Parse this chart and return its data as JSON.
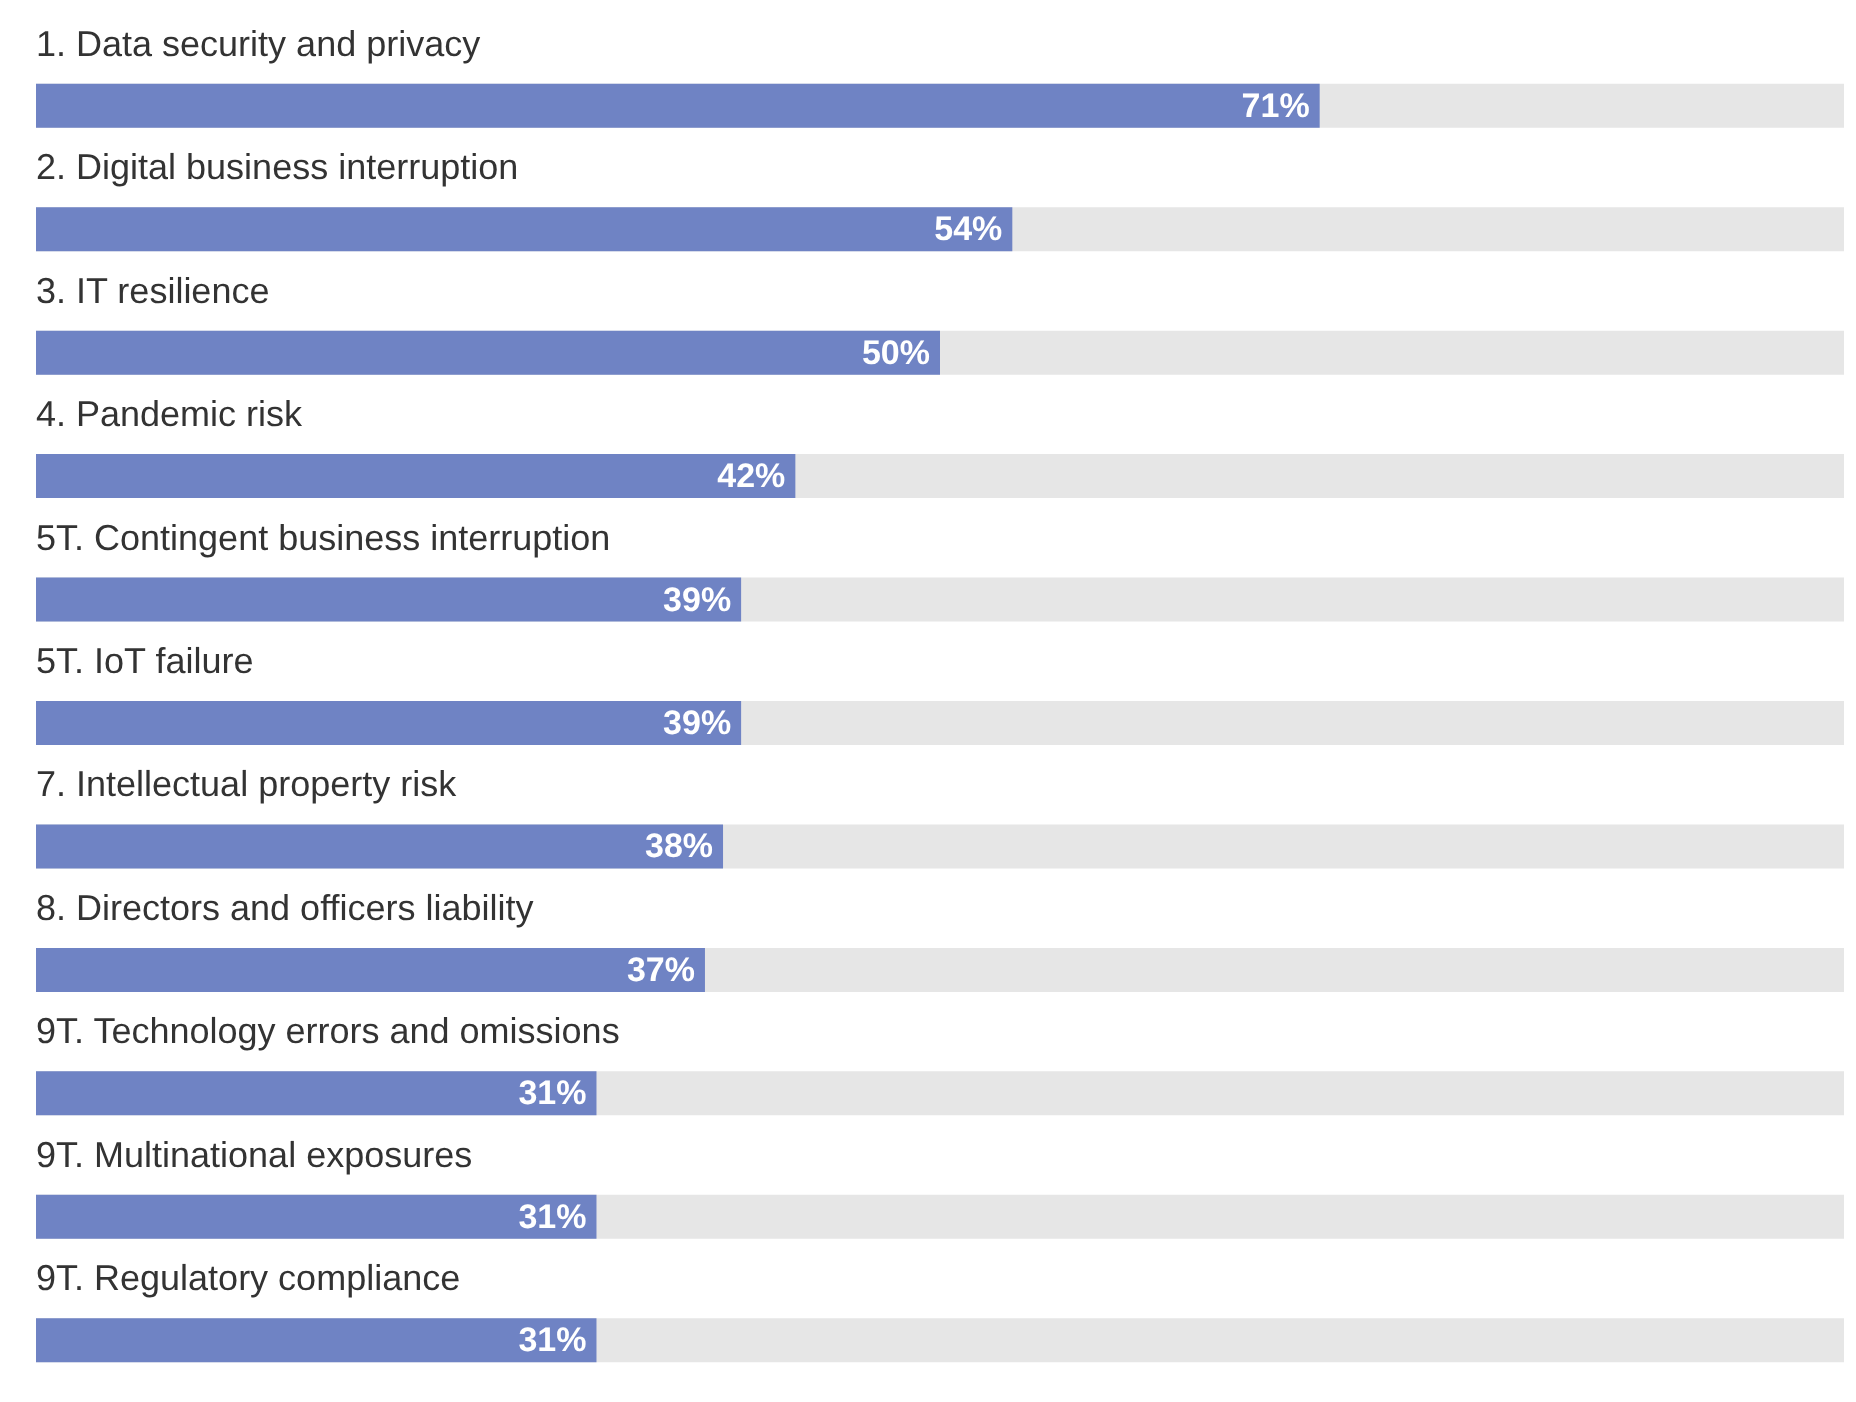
{
  "chart_data": {
    "type": "bar",
    "orientation": "horizontal",
    "categories": [
      "1. Data security and privacy",
      "2. Digital business interruption",
      "3. IT resilience",
      "4. Pandemic risk",
      "5T. Contingent business interruption",
      "5T. IoT failure",
      "7. Intellectual property risk",
      "8. Directors and officers liability",
      "9T. Technology errors and omissions",
      "9T. Multinational exposures",
      "9T. Regulatory compliance"
    ],
    "values": [
      71,
      54,
      50,
      42,
      39,
      39,
      38,
      37,
      31,
      31,
      31
    ],
    "value_labels": [
      "71%",
      "54%",
      "50%",
      "42%",
      "39%",
      "39%",
      "38%",
      "37%",
      "31%",
      "31%",
      "31%"
    ],
    "color": "#6f83c4",
    "xlim": [
      0,
      100
    ]
  }
}
